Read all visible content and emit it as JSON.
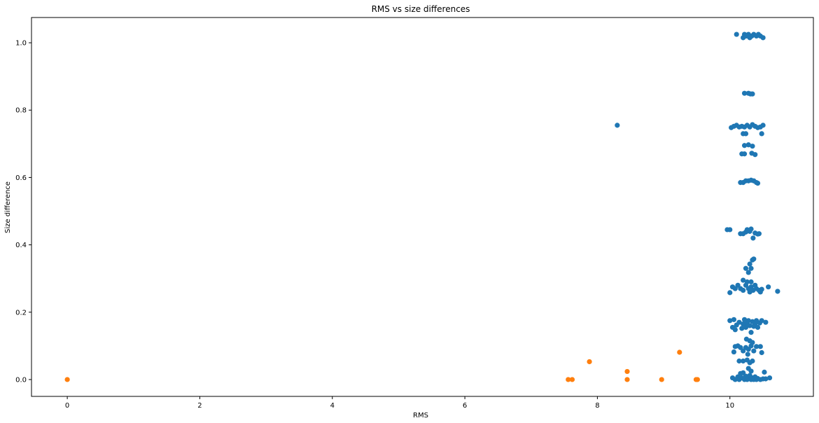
{
  "chart_data": {
    "type": "scatter",
    "title": "RMS vs size differences",
    "xlabel": "RMS",
    "ylabel": "Size difference",
    "xlim": [
      -0.54,
      11.26
    ],
    "ylim": [
      -0.05,
      1.075
    ],
    "xticks": [
      0,
      2,
      4,
      6,
      8,
      10
    ],
    "xtick_labels": [
      "0",
      "2",
      "4",
      "6",
      "8",
      "10"
    ],
    "yticks": [
      0.0,
      0.2,
      0.4,
      0.6,
      0.8,
      1.0
    ],
    "ytick_labels": [
      "0.0",
      "0.2",
      "0.4",
      "0.6",
      "0.8",
      "1.0"
    ],
    "grid": false,
    "series": [
      {
        "color": "#1f77b4",
        "points": [
          [
            10.1,
            1.025
          ],
          [
            10.2,
            1.015
          ],
          [
            10.22,
            1.025
          ],
          [
            10.25,
            1.02
          ],
          [
            10.28,
            1.025
          ],
          [
            10.3,
            1.015
          ],
          [
            10.33,
            1.02
          ],
          [
            10.36,
            1.025
          ],
          [
            10.4,
            1.02
          ],
          [
            10.43,
            1.025
          ],
          [
            10.46,
            1.02
          ],
          [
            10.5,
            1.015
          ],
          [
            10.22,
            0.85
          ],
          [
            10.28,
            0.85
          ],
          [
            10.31,
            0.848
          ],
          [
            10.34,
            0.848
          ],
          [
            8.3,
            0.755
          ],
          [
            10.02,
            0.748
          ],
          [
            10.06,
            0.752
          ],
          [
            10.1,
            0.755
          ],
          [
            10.14,
            0.75
          ],
          [
            10.18,
            0.752
          ],
          [
            10.22,
            0.75
          ],
          [
            10.26,
            0.755
          ],
          [
            10.3,
            0.75
          ],
          [
            10.34,
            0.757
          ],
          [
            10.38,
            0.752
          ],
          [
            10.42,
            0.748
          ],
          [
            10.46,
            0.75
          ],
          [
            10.5,
            0.755
          ],
          [
            10.2,
            0.73
          ],
          [
            10.24,
            0.73
          ],
          [
            10.48,
            0.73
          ],
          [
            10.22,
            0.695
          ],
          [
            10.28,
            0.697
          ],
          [
            10.34,
            0.693
          ],
          [
            10.18,
            0.67
          ],
          [
            10.22,
            0.67
          ],
          [
            10.33,
            0.672
          ],
          [
            10.38,
            0.668
          ],
          [
            10.16,
            0.585
          ],
          [
            10.2,
            0.585
          ],
          [
            10.24,
            0.59
          ],
          [
            10.28,
            0.59
          ],
          [
            10.32,
            0.592
          ],
          [
            10.36,
            0.59
          ],
          [
            10.4,
            0.585
          ],
          [
            10.42,
            0.583
          ],
          [
            9.96,
            0.445
          ],
          [
            10.0,
            0.445
          ],
          [
            10.16,
            0.433
          ],
          [
            10.2,
            0.433
          ],
          [
            10.24,
            0.438
          ],
          [
            10.26,
            0.445
          ],
          [
            10.3,
            0.44
          ],
          [
            10.32,
            0.447
          ],
          [
            10.35,
            0.42
          ],
          [
            10.38,
            0.435
          ],
          [
            10.42,
            0.432
          ],
          [
            10.44,
            0.433
          ],
          [
            10.34,
            0.355
          ],
          [
            10.36,
            0.358
          ],
          [
            10.3,
            0.343
          ],
          [
            10.24,
            0.33
          ],
          [
            10.32,
            0.33
          ],
          [
            10.28,
            0.318
          ],
          [
            10.2,
            0.295
          ],
          [
            10.26,
            0.29
          ],
          [
            10.32,
            0.29
          ],
          [
            10.0,
            0.258
          ],
          [
            10.04,
            0.275
          ],
          [
            10.08,
            0.27
          ],
          [
            10.12,
            0.28
          ],
          [
            10.16,
            0.27
          ],
          [
            10.2,
            0.265
          ],
          [
            10.24,
            0.28
          ],
          [
            10.28,
            0.27
          ],
          [
            10.3,
            0.26
          ],
          [
            10.32,
            0.275
          ],
          [
            10.35,
            0.265
          ],
          [
            10.38,
            0.28
          ],
          [
            10.4,
            0.27
          ],
          [
            10.44,
            0.265
          ],
          [
            10.46,
            0.26
          ],
          [
            10.48,
            0.268
          ],
          [
            10.58,
            0.275
          ],
          [
            10.72,
            0.262
          ],
          [
            10.0,
            0.175
          ],
          [
            10.04,
            0.155
          ],
          [
            10.06,
            0.178
          ],
          [
            10.08,
            0.148
          ],
          [
            10.1,
            0.162
          ],
          [
            10.14,
            0.17
          ],
          [
            10.18,
            0.152
          ],
          [
            10.2,
            0.165
          ],
          [
            10.22,
            0.178
          ],
          [
            10.24,
            0.155
          ],
          [
            10.26,
            0.168
          ],
          [
            10.28,
            0.175
          ],
          [
            10.3,
            0.16
          ],
          [
            10.32,
            0.14
          ],
          [
            10.34,
            0.172
          ],
          [
            10.36,
            0.158
          ],
          [
            10.38,
            0.165
          ],
          [
            10.4,
            0.175
          ],
          [
            10.42,
            0.155
          ],
          [
            10.45,
            0.168
          ],
          [
            10.48,
            0.175
          ],
          [
            10.54,
            0.17
          ],
          [
            10.25,
            0.12
          ],
          [
            10.3,
            0.115
          ],
          [
            10.34,
            0.11
          ],
          [
            10.08,
            0.098
          ],
          [
            10.12,
            0.1
          ],
          [
            10.16,
            0.095
          ],
          [
            10.2,
            0.085
          ],
          [
            10.24,
            0.095
          ],
          [
            10.28,
            0.09
          ],
          [
            10.32,
            0.1
          ],
          [
            10.36,
            0.085
          ],
          [
            10.4,
            0.098
          ],
          [
            10.46,
            0.098
          ],
          [
            10.48,
            0.08
          ],
          [
            10.06,
            0.082
          ],
          [
            10.27,
            0.075
          ],
          [
            10.14,
            0.055
          ],
          [
            10.2,
            0.055
          ],
          [
            10.26,
            0.058
          ],
          [
            10.3,
            0.05
          ],
          [
            10.34,
            0.055
          ],
          [
            10.28,
            0.033
          ],
          [
            10.32,
            0.025
          ],
          [
            10.52,
            0.022
          ],
          [
            10.2,
            0.02
          ],
          [
            10.16,
            0.018
          ],
          [
            10.04,
            0.005
          ],
          [
            10.08,
            0.0
          ],
          [
            10.12,
            0.008
          ],
          [
            10.14,
            0.0
          ],
          [
            10.18,
            0.005
          ],
          [
            10.22,
            0.0
          ],
          [
            10.24,
            0.01
          ],
          [
            10.26,
            0.0
          ],
          [
            10.28,
            0.005
          ],
          [
            10.3,
            0.012
          ],
          [
            10.32,
            0.0
          ],
          [
            10.34,
            0.005
          ],
          [
            10.36,
            0.0
          ],
          [
            10.38,
            0.008
          ],
          [
            10.4,
            0.0
          ],
          [
            10.42,
            0.003
          ],
          [
            10.46,
            0.0
          ],
          [
            10.5,
            0.002
          ],
          [
            10.54,
            0.002
          ],
          [
            10.6,
            0.005
          ]
        ]
      },
      {
        "color": "#ff7f0e",
        "points": [
          [
            0.0,
            0.0
          ],
          [
            7.56,
            0.0
          ],
          [
            7.62,
            0.0
          ],
          [
            7.88,
            0.053
          ],
          [
            8.45,
            0.024
          ],
          [
            8.45,
            0.0
          ],
          [
            8.97,
            0.0
          ],
          [
            9.24,
            0.081
          ],
          [
            9.49,
            0.0
          ],
          [
            9.51,
            0.0
          ]
        ]
      }
    ]
  }
}
